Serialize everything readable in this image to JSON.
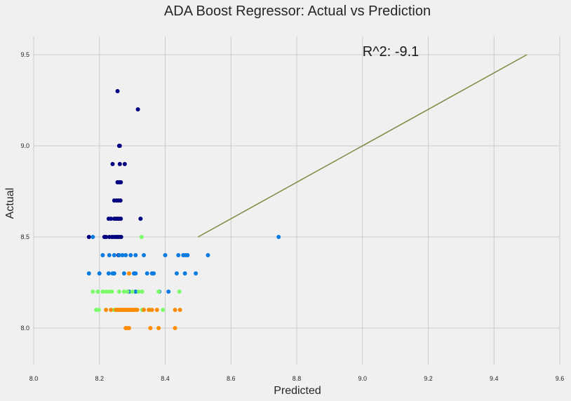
{
  "chart_data": {
    "type": "scatter",
    "title": "ADA Boost Regressor: Actual vs Prediction",
    "xlabel": "Predicted",
    "ylabel": "Actual",
    "xlim": [
      8.0,
      9.6
    ],
    "ylim": [
      7.8,
      9.6
    ],
    "x_ticks": [
      "8.0",
      "8.2",
      "8.4",
      "8.6",
      "8.8",
      "9.0",
      "9.2",
      "9.4",
      "9.6"
    ],
    "y_ticks": [
      "8.0",
      "8.5",
      "9.0",
      "9.5"
    ],
    "grid": true,
    "background_color": "#f0f0f0",
    "grid_color": "#cbcbcb",
    "annotation": {
      "text": "R^2: -9.1",
      "x": 9.0,
      "y": 9.5
    },
    "reference_line": {
      "x": [
        8.5,
        9.5
      ],
      "y": [
        8.5,
        9.5
      ],
      "color": "#7a8a3e"
    },
    "series": [
      {
        "color": "#000080",
        "points": [
          [
            8.255,
            9.3
          ],
          [
            8.317,
            9.2
          ],
          [
            8.26,
            9.0
          ],
          [
            8.262,
            9.0
          ],
          [
            8.24,
            8.9
          ],
          [
            8.262,
            8.9
          ],
          [
            8.277,
            8.9
          ],
          [
            8.255,
            8.8
          ],
          [
            8.26,
            8.8
          ],
          [
            8.265,
            8.8
          ],
          [
            8.245,
            8.7
          ],
          [
            8.252,
            8.7
          ],
          [
            8.258,
            8.7
          ],
          [
            8.264,
            8.7
          ],
          [
            8.228,
            8.6
          ],
          [
            8.235,
            8.6
          ],
          [
            8.245,
            8.6
          ],
          [
            8.25,
            8.6
          ],
          [
            8.255,
            8.6
          ],
          [
            8.26,
            8.6
          ],
          [
            8.265,
            8.6
          ],
          [
            8.325,
            8.6
          ],
          [
            8.168,
            8.5
          ],
          [
            8.215,
            8.5
          ],
          [
            8.22,
            8.5
          ],
          [
            8.23,
            8.5
          ],
          [
            8.238,
            8.5
          ],
          [
            8.244,
            8.5
          ],
          [
            8.25,
            8.5
          ],
          [
            8.255,
            8.5
          ],
          [
            8.26,
            8.5
          ],
          [
            8.266,
            8.5
          ],
          [
            8.258,
            8.4
          ]
        ]
      },
      {
        "color": "#0a7be0",
        "points": [
          [
            8.18,
            8.5
          ],
          [
            8.745,
            8.5
          ],
          [
            8.21,
            8.4
          ],
          [
            8.23,
            8.4
          ],
          [
            8.245,
            8.4
          ],
          [
            8.26,
            8.4
          ],
          [
            8.27,
            8.4
          ],
          [
            8.28,
            8.4
          ],
          [
            8.295,
            8.4
          ],
          [
            8.31,
            8.4
          ],
          [
            8.335,
            8.4
          ],
          [
            8.4,
            8.4
          ],
          [
            8.44,
            8.4
          ],
          [
            8.455,
            8.4
          ],
          [
            8.462,
            8.4
          ],
          [
            8.468,
            8.4
          ],
          [
            8.53,
            8.4
          ],
          [
            8.168,
            8.3
          ],
          [
            8.2,
            8.3
          ],
          [
            8.228,
            8.3
          ],
          [
            8.24,
            8.3
          ],
          [
            8.245,
            8.3
          ],
          [
            8.275,
            8.3
          ],
          [
            8.305,
            8.3
          ],
          [
            8.31,
            8.3
          ],
          [
            8.345,
            8.3
          ],
          [
            8.36,
            8.3
          ],
          [
            8.365,
            8.3
          ],
          [
            8.435,
            8.3
          ],
          [
            8.46,
            8.3
          ],
          [
            8.493,
            8.3
          ],
          [
            8.29,
            8.2
          ],
          [
            8.31,
            8.2
          ],
          [
            8.382,
            8.2
          ],
          [
            8.41,
            8.2
          ]
        ]
      },
      {
        "color": "#7cfc6a",
        "points": [
          [
            8.328,
            8.5
          ],
          [
            8.18,
            8.2
          ],
          [
            8.195,
            8.2
          ],
          [
            8.21,
            8.2
          ],
          [
            8.22,
            8.2
          ],
          [
            8.23,
            8.2
          ],
          [
            8.238,
            8.2
          ],
          [
            8.26,
            8.2
          ],
          [
            8.275,
            8.2
          ],
          [
            8.285,
            8.2
          ],
          [
            8.3,
            8.2
          ],
          [
            8.32,
            8.2
          ],
          [
            8.33,
            8.2
          ],
          [
            8.38,
            8.2
          ],
          [
            8.443,
            8.2
          ],
          [
            8.19,
            8.1
          ],
          [
            8.198,
            8.1
          ],
          [
            8.245,
            8.1
          ],
          [
            8.33,
            8.1
          ],
          [
            8.355,
            8.1
          ],
          [
            8.393,
            8.1
          ]
        ]
      },
      {
        "color": "#ff8c00",
        "points": [
          [
            8.29,
            8.3
          ],
          [
            8.22,
            8.1
          ],
          [
            8.235,
            8.1
          ],
          [
            8.25,
            8.1
          ],
          [
            8.255,
            8.1
          ],
          [
            8.26,
            8.1
          ],
          [
            8.265,
            8.1
          ],
          [
            8.27,
            8.1
          ],
          [
            8.275,
            8.1
          ],
          [
            8.28,
            8.1
          ],
          [
            8.285,
            8.1
          ],
          [
            8.29,
            8.1
          ],
          [
            8.295,
            8.1
          ],
          [
            8.3,
            8.1
          ],
          [
            8.305,
            8.1
          ],
          [
            8.31,
            8.1
          ],
          [
            8.315,
            8.1
          ],
          [
            8.335,
            8.1
          ],
          [
            8.35,
            8.1
          ],
          [
            8.36,
            8.1
          ],
          [
            8.375,
            8.1
          ],
          [
            8.43,
            8.1
          ],
          [
            8.445,
            8.1
          ],
          [
            8.28,
            8.0
          ],
          [
            8.285,
            8.0
          ],
          [
            8.29,
            8.0
          ],
          [
            8.355,
            8.0
          ],
          [
            8.38,
            8.0
          ],
          [
            8.43,
            8.0
          ]
        ]
      }
    ]
  }
}
